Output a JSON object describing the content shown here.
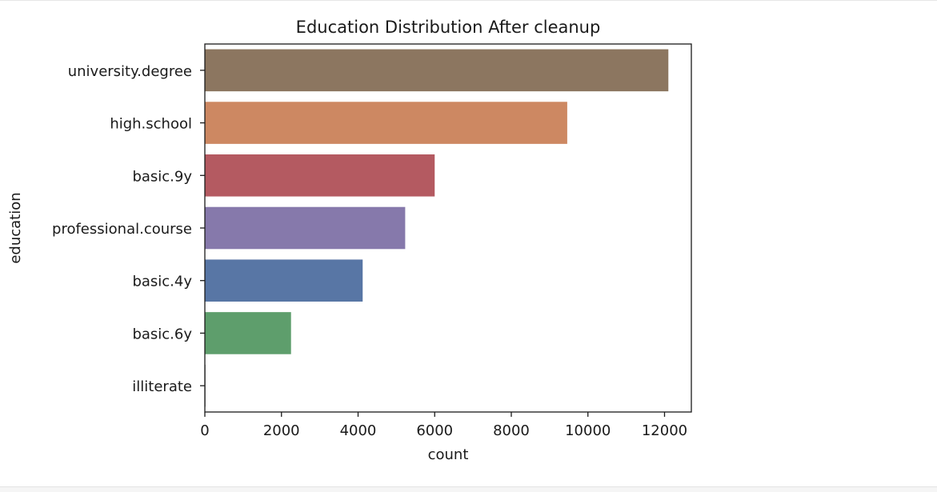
{
  "chart_data": {
    "type": "bar",
    "orientation": "horizontal",
    "title": "Education Distribution After cleanup",
    "xlabel": "count",
    "ylabel": "education",
    "categories": [
      "university.degree",
      "high.school",
      "basic.9y",
      "professional.course",
      "basic.4y",
      "basic.6y",
      "illiterate"
    ],
    "values": [
      12100,
      9460,
      6000,
      5230,
      4120,
      2250,
      18
    ],
    "colors": [
      "#8c7660",
      "#cd8862",
      "#b45a61",
      "#8679ab",
      "#5876a5",
      "#5e9e6c",
      "#8b8b8b"
    ],
    "xlim": [
      0,
      12700
    ],
    "xticks": [
      0,
      2000,
      4000,
      6000,
      8000,
      10000,
      12000
    ],
    "xtick_labels": [
      "0",
      "2000",
      "4000",
      "6000",
      "8000",
      "10000",
      "12000"
    ],
    "grid": false
  }
}
